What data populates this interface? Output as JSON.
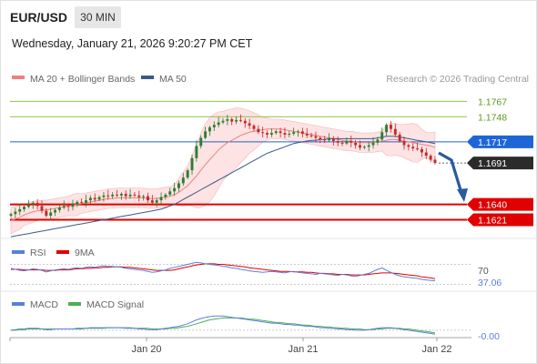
{
  "header": {
    "symbol": "EUR/USD",
    "timeframe": "30 MIN",
    "datetime": "Wednesday, January 21, 2026 9:20:27 PM CET"
  },
  "legend": {
    "ma20": "MA 20 + Bollinger Bands",
    "ma50": "MA 50",
    "credit": "Research © 2026 Trading Central"
  },
  "colors": {
    "up": "#2e7d32",
    "down": "#c62828",
    "ma20": "#f08080",
    "ma50": "#3a5a8c",
    "bands": "#fde3e3",
    "resistance": "#8bc34a",
    "pivot": "#1e66c8",
    "support": "#e00000",
    "rsi": "#5b7fd9",
    "rsi_ma": "#e00000",
    "macd": "#5b7fd9",
    "macd_signal": "#4caf50"
  },
  "chart_data": [
    {
      "type": "candlestick",
      "title": "EUR/USD 30 MIN",
      "ylim": [
        1.1598,
        1.1782
      ],
      "levels": [
        {
          "label": "1.1767",
          "value": 1.1767,
          "kind": "resistance"
        },
        {
          "label": "1.1748",
          "value": 1.1748,
          "kind": "resistance"
        },
        {
          "label": "1.1717",
          "value": 1.1717,
          "kind": "pivot"
        },
        {
          "label": "1.1691",
          "value": 1.1691,
          "kind": "last"
        },
        {
          "label": "1.1640",
          "value": 1.164,
          "kind": "support"
        },
        {
          "label": "1.1621",
          "value": 1.1621,
          "kind": "support"
        }
      ],
      "closes": [
        1.1628,
        1.1631,
        1.1634,
        1.1637,
        1.164,
        1.1642,
        1.1638,
        1.1632,
        1.1626,
        1.163,
        1.1633,
        1.1636,
        1.1638,
        1.1637,
        1.164,
        1.1643,
        1.1642,
        1.1645,
        1.1648,
        1.1646,
        1.1649,
        1.1651,
        1.165,
        1.1652,
        1.1651,
        1.1653,
        1.165,
        1.1652,
        1.1651,
        1.1649,
        1.165,
        1.1645,
        1.1642,
        1.1645,
        1.1649,
        1.1652,
        1.1656,
        1.166,
        1.1666,
        1.1673,
        1.1682,
        1.1697,
        1.1712,
        1.1722,
        1.173,
        1.1735,
        1.1738,
        1.1741,
        1.1743,
        1.1745,
        1.1742,
        1.1744,
        1.1743,
        1.174,
        1.1737,
        1.1733,
        1.1729,
        1.1728,
        1.1726,
        1.1728,
        1.173,
        1.1728,
        1.1726,
        1.1727,
        1.1729,
        1.173,
        1.1727,
        1.1725,
        1.1724,
        1.1722,
        1.172,
        1.1719,
        1.1721,
        1.1718,
        1.1716,
        1.1715,
        1.1718,
        1.1716,
        1.1713,
        1.171,
        1.1711,
        1.1713,
        1.1716,
        1.172,
        1.1729,
        1.1738,
        1.1733,
        1.1726,
        1.1718,
        1.1713,
        1.1711,
        1.1709,
        1.1708,
        1.1704,
        1.17,
        1.1695,
        1.1691
      ],
      "ma20": [
        1.162,
        1.1622,
        1.1624,
        1.1627,
        1.1629,
        1.1631,
        1.1632,
        1.1633,
        1.1633,
        1.1634,
        1.1635,
        1.1636,
        1.1637,
        1.1638,
        1.1639,
        1.164,
        1.1641,
        1.1642,
        1.1643,
        1.1644,
        1.1645,
        1.1646,
        1.1647,
        1.1647,
        1.1648,
        1.1648,
        1.1648,
        1.1648,
        1.1648,
        1.1648,
        1.1648,
        1.1647,
        1.1647,
        1.1647,
        1.1648,
        1.1649,
        1.165,
        1.1652,
        1.1655,
        1.1659,
        1.1663,
        1.1669,
        1.1675,
        1.1682,
        1.1689,
        1.1695,
        1.1701,
        1.1707,
        1.1712,
        1.1716,
        1.1719,
        1.1722,
        1.1725,
        1.1727,
        1.1729,
        1.173,
        1.1731,
        1.1732,
        1.1733,
        1.1733,
        1.1733,
        1.1733,
        1.1732,
        1.1731,
        1.173,
        1.1729,
        1.1728,
        1.1727,
        1.1726,
        1.1725,
        1.1724,
        1.1723,
        1.1722,
        1.1721,
        1.172,
        1.1719,
        1.1718,
        1.1718,
        1.1717,
        1.1716,
        1.1716,
        1.1716,
        1.1716,
        1.1717,
        1.1718,
        1.1719,
        1.172,
        1.172,
        1.1719,
        1.1718,
        1.1717,
        1.1716,
        1.1715,
        1.1714,
        1.1713,
        1.1712,
        1.171
      ],
      "ma50": [
        1.16,
        1.1601,
        1.1602,
        1.1603,
        1.1604,
        1.1605,
        1.1606,
        1.1607,
        1.1608,
        1.1609,
        1.161,
        1.1611,
        1.1612,
        1.1613,
        1.1614,
        1.1615,
        1.1616,
        1.1617,
        1.1618,
        1.1619,
        1.162,
        1.1621,
        1.1622,
        1.1623,
        1.1624,
        1.1625,
        1.1626,
        1.1627,
        1.1628,
        1.1629,
        1.163,
        1.1631,
        1.1632,
        1.1633,
        1.1634,
        1.1636,
        1.1638,
        1.164,
        1.1643,
        1.1646,
        1.1649,
        1.1652,
        1.1655,
        1.1658,
        1.1661,
        1.1664,
        1.1667,
        1.167,
        1.1673,
        1.1676,
        1.1679,
        1.1682,
        1.1685,
        1.1688,
        1.1691,
        1.1694,
        1.1697,
        1.17,
        1.1703,
        1.1705,
        1.1707,
        1.1709,
        1.1711,
        1.1713,
        1.1715,
        1.1716,
        1.1717,
        1.1718,
        1.1719,
        1.1719,
        1.172,
        1.172,
        1.1721,
        1.1721,
        1.1721,
        1.1721,
        1.1721,
        1.1721,
        1.1721,
        1.1721,
        1.1721,
        1.1721,
        1.1721,
        1.1722,
        1.1723,
        1.1724,
        1.1724,
        1.1724,
        1.1723,
        1.1722,
        1.1721,
        1.172,
        1.1719,
        1.1718,
        1.1717,
        1.1716,
        1.1715
      ]
    },
    {
      "type": "line",
      "legend": [
        "RSI",
        "9MA"
      ],
      "ylim": [
        0,
        100
      ],
      "ticks": [
        "70",
        "37.06"
      ],
      "rsi": [
        62,
        60,
        58,
        57,
        59,
        61,
        60,
        58,
        55,
        57,
        59,
        60,
        61,
        60,
        62,
        63,
        62,
        64,
        65,
        64,
        66,
        67,
        66,
        66,
        65,
        64,
        62,
        61,
        60,
        59,
        58,
        56,
        54,
        55,
        57,
        59,
        62,
        64,
        66,
        68,
        70,
        72,
        74,
        73,
        71,
        70,
        69,
        68,
        66,
        65,
        63,
        62,
        60,
        59,
        57,
        56,
        55,
        54,
        55,
        56,
        55,
        54,
        53,
        55,
        56,
        54,
        53,
        52,
        51,
        50,
        52,
        51,
        50,
        49,
        48,
        50,
        49,
        47,
        46,
        48,
        50,
        52,
        56,
        60,
        63,
        58,
        54,
        50,
        47,
        45,
        44,
        43,
        42,
        40,
        39,
        38,
        37
      ],
      "ma9": [
        60,
        60,
        60,
        59,
        59,
        59,
        59,
        59,
        58,
        58,
        58,
        59,
        59,
        59,
        60,
        61,
        61,
        62,
        62,
        63,
        63,
        64,
        64,
        65,
        65,
        65,
        64,
        64,
        63,
        62,
        61,
        60,
        59,
        58,
        58,
        58,
        58,
        59,
        61,
        63,
        65,
        67,
        69,
        70,
        71,
        71,
        71,
        70,
        70,
        69,
        68,
        67,
        66,
        65,
        63,
        62,
        61,
        60,
        59,
        58,
        57,
        56,
        56,
        56,
        55,
        55,
        55,
        54,
        54,
        53,
        52,
        52,
        51,
        51,
        50,
        50,
        50,
        49,
        49,
        49,
        49,
        50,
        51,
        52,
        53,
        53,
        53,
        52,
        51,
        50,
        49,
        48,
        47,
        45,
        44,
        43,
        41
      ]
    },
    {
      "type": "line",
      "legend": [
        "MACD",
        "MACD Signal"
      ],
      "ylim": [
        -0.001,
        0.0028
      ],
      "ticks": [
        "-0.00"
      ],
      "xlabels": [
        "Jan 20",
        "Jan 21",
        "Jan 22"
      ],
      "macd": [
        0.0,
        0.0001,
        0.0002,
        0.0002,
        0.0003,
        0.0003,
        0.0003,
        0.0002,
        0.0001,
        0.0001,
        0.0002,
        0.0002,
        0.0002,
        0.0002,
        0.0002,
        0.0003,
        0.0003,
        0.0003,
        0.0004,
        0.0004,
        0.0004,
        0.0004,
        0.0004,
        0.0004,
        0.0004,
        0.0004,
        0.0003,
        0.0003,
        0.0003,
        0.0002,
        0.0002,
        0.0001,
        0.0001,
        0.0001,
        0.0002,
        0.0003,
        0.0004,
        0.0005,
        0.0006,
        0.0008,
        0.001,
        0.0013,
        0.0016,
        0.0018,
        0.002,
        0.0021,
        0.0022,
        0.0022,
        0.0022,
        0.0021,
        0.002,
        0.0019,
        0.0018,
        0.0017,
        0.0016,
        0.0015,
        0.0014,
        0.0013,
        0.0012,
        0.0011,
        0.0011,
        0.001,
        0.0009,
        0.0009,
        0.0008,
        0.0008,
        0.0007,
        0.0006,
        0.0006,
        0.0005,
        0.0004,
        0.0004,
        0.0003,
        0.0003,
        0.0002,
        0.0002,
        0.0001,
        0.0001,
        0.0,
        0.0,
        0.0,
        0.0001,
        0.0002,
        0.0003,
        0.0004,
        0.0004,
        0.0004,
        0.0003,
        0.0002,
        0.0001,
        0.0,
        -0.0001,
        -0.0002,
        -0.0003,
        -0.0004,
        -0.0005,
        -0.0006
      ],
      "signal": [
        0.0,
        0.0,
        0.0001,
        0.0001,
        0.0002,
        0.0002,
        0.0002,
        0.0002,
        0.0002,
        0.0002,
        0.0002,
        0.0002,
        0.0002,
        0.0002,
        0.0002,
        0.0002,
        0.0002,
        0.0003,
        0.0003,
        0.0003,
        0.0003,
        0.0003,
        0.0004,
        0.0004,
        0.0004,
        0.0004,
        0.0004,
        0.0004,
        0.0003,
        0.0003,
        0.0003,
        0.0003,
        0.0002,
        0.0002,
        0.0002,
        0.0002,
        0.0003,
        0.0003,
        0.0004,
        0.0005,
        0.0006,
        0.0008,
        0.001,
        0.0012,
        0.0014,
        0.0016,
        0.0017,
        0.0018,
        0.0019,
        0.0019,
        0.0019,
        0.0019,
        0.0019,
        0.0018,
        0.0017,
        0.0017,
        0.0016,
        0.0015,
        0.0014,
        0.0013,
        0.0012,
        0.0012,
        0.0011,
        0.001,
        0.001,
        0.0009,
        0.0008,
        0.0008,
        0.0007,
        0.0006,
        0.0006,
        0.0005,
        0.0005,
        0.0004,
        0.0004,
        0.0003,
        0.0003,
        0.0002,
        0.0002,
        0.0002,
        0.0001,
        0.0001,
        0.0001,
        0.0002,
        0.0002,
        0.0003,
        0.0003,
        0.0003,
        0.0003,
        0.0002,
        0.0002,
        0.0001,
        0.0,
        -0.0001,
        -0.0002,
        -0.0003,
        -0.0004
      ]
    }
  ]
}
